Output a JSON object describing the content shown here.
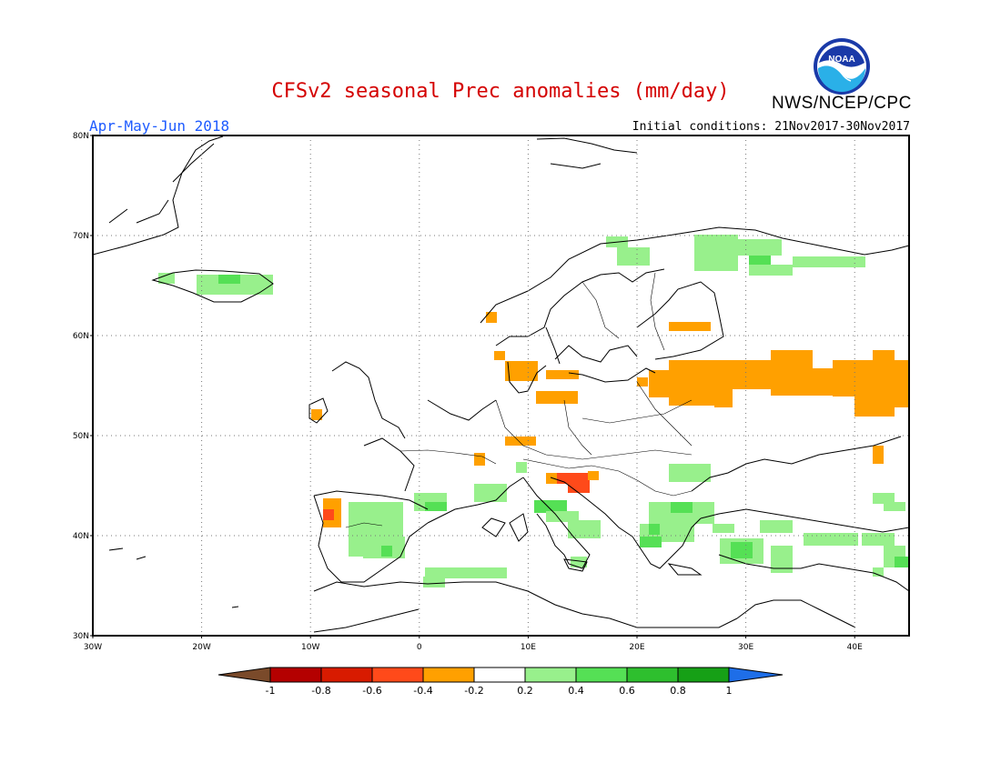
{
  "header": {
    "title": "CFSv2 seasonal Prec anomalies (mm/day)",
    "agency": "NWS/NCEP/CPC",
    "logo_text": "NOAA",
    "period": "Apr-May-Jun 2018",
    "initial_conditions": "Initial conditions: 21Nov2017-30Nov2017"
  },
  "map": {
    "lat_labels": [
      "80N",
      "70N",
      "60N",
      "50N",
      "40N",
      "30N"
    ],
    "lon_labels": [
      "30W",
      "20W",
      "10W",
      "0",
      "10E",
      "20E",
      "30E",
      "40E"
    ],
    "lat_range": [
      30,
      80
    ],
    "lon_range": [
      -30,
      45
    ],
    "grid": "dotted"
  },
  "legend": {
    "labels": [
      "-1",
      "-0.8",
      "-0.6",
      "-0.4",
      "-0.2",
      "0.2",
      "0.4",
      "0.6",
      "0.8",
      "1"
    ],
    "colors": {
      "below_-1": "#7a4a2a",
      "-1_-0.8": "#b40000",
      "-0.8_-0.6": "#d81b00",
      "-0.6_-0.4": "#ff4a1a",
      "-0.4_-0.2": "#ffa000",
      "-0.2_0.2": "#ffffff",
      "0.2_0.4": "#98f08c",
      "0.4_0.6": "#55e055",
      "0.6_0.8": "#2ebf2e",
      "0.8_1": "#16a016",
      "above_1": "#1e6ee8"
    }
  }
}
